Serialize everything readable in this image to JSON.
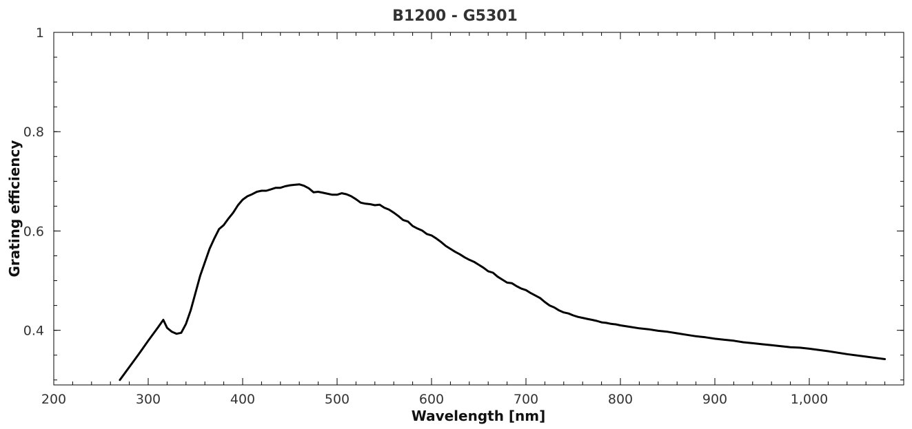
{
  "chart_data": {
    "type": "line",
    "title": "B1200 - G5301",
    "xlabel": "Wavelength [nm]",
    "ylabel": "Grating efficiency",
    "xlim": [
      200,
      1100
    ],
    "ylim": [
      0.29,
      1.0
    ],
    "x_ticks": [
      200,
      300,
      400,
      500,
      600,
      700,
      800,
      900,
      1000
    ],
    "x_tick_labels": [
      "200",
      "300",
      "400",
      "500",
      "600",
      "700",
      "800",
      "900",
      "1,000"
    ],
    "x_minor_step": 20,
    "y_ticks": [
      0.4,
      0.6,
      0.8,
      1.0
    ],
    "y_tick_labels": [
      "0.4",
      "0.6",
      "0.8",
      "1"
    ],
    "y_minor_step": 0.05,
    "grid": false,
    "legend": "none",
    "line_color": "#000000",
    "series": [
      {
        "x": [
          270,
          280,
          290,
          300,
          310,
          316,
          320,
          325,
          330,
          335,
          340,
          345,
          350,
          355,
          360,
          365,
          370,
          375,
          380,
          385,
          390,
          395,
          400,
          405,
          410,
          415,
          420,
          425,
          430,
          435,
          440,
          445,
          450,
          455,
          460,
          465,
          470,
          475,
          480,
          485,
          490,
          495,
          500,
          505,
          510,
          515,
          520,
          525,
          530,
          535,
          540,
          545,
          550,
          555,
          560,
          565,
          570,
          575,
          580,
          585,
          590,
          595,
          600,
          605,
          610,
          615,
          620,
          625,
          630,
          635,
          640,
          645,
          650,
          655,
          660,
          665,
          670,
          675,
          680,
          685,
          690,
          695,
          700,
          705,
          710,
          715,
          720,
          725,
          730,
          735,
          740,
          745,
          750,
          755,
          760,
          765,
          770,
          775,
          780,
          785,
          790,
          795,
          800,
          810,
          820,
          830,
          840,
          850,
          860,
          870,
          880,
          890,
          900,
          910,
          920,
          930,
          940,
          950,
          960,
          970,
          980,
          990,
          1000,
          1020,
          1040,
          1060,
          1080
        ],
        "y": [
          0.3,
          0.326,
          0.352,
          0.379,
          0.405,
          0.421,
          0.405,
          0.397,
          0.393,
          0.395,
          0.413,
          0.44,
          0.475,
          0.51,
          0.537,
          0.564,
          0.585,
          0.604,
          0.612,
          0.625,
          0.637,
          0.652,
          0.663,
          0.67,
          0.674,
          0.679,
          0.681,
          0.681,
          0.684,
          0.687,
          0.687,
          0.69,
          0.692,
          0.693,
          0.694,
          0.691,
          0.686,
          0.678,
          0.679,
          0.677,
          0.675,
          0.673,
          0.673,
          0.676,
          0.674,
          0.67,
          0.664,
          0.657,
          0.655,
          0.654,
          0.652,
          0.653,
          0.647,
          0.643,
          0.637,
          0.63,
          0.622,
          0.619,
          0.61,
          0.605,
          0.601,
          0.594,
          0.591,
          0.585,
          0.578,
          0.57,
          0.564,
          0.558,
          0.553,
          0.547,
          0.542,
          0.538,
          0.532,
          0.526,
          0.519,
          0.516,
          0.508,
          0.502,
          0.496,
          0.495,
          0.489,
          0.484,
          0.481,
          0.475,
          0.47,
          0.465,
          0.457,
          0.45,
          0.446,
          0.44,
          0.436,
          0.434,
          0.43,
          0.427,
          0.425,
          0.423,
          0.421,
          0.419,
          0.416,
          0.415,
          0.413,
          0.412,
          0.41,
          0.407,
          0.404,
          0.402,
          0.399,
          0.397,
          0.394,
          0.391,
          0.388,
          0.386,
          0.383,
          0.381,
          0.379,
          0.376,
          0.374,
          0.372,
          0.37,
          0.368,
          0.366,
          0.365,
          0.363,
          0.358,
          0.352,
          0.347,
          0.342
        ]
      }
    ]
  }
}
